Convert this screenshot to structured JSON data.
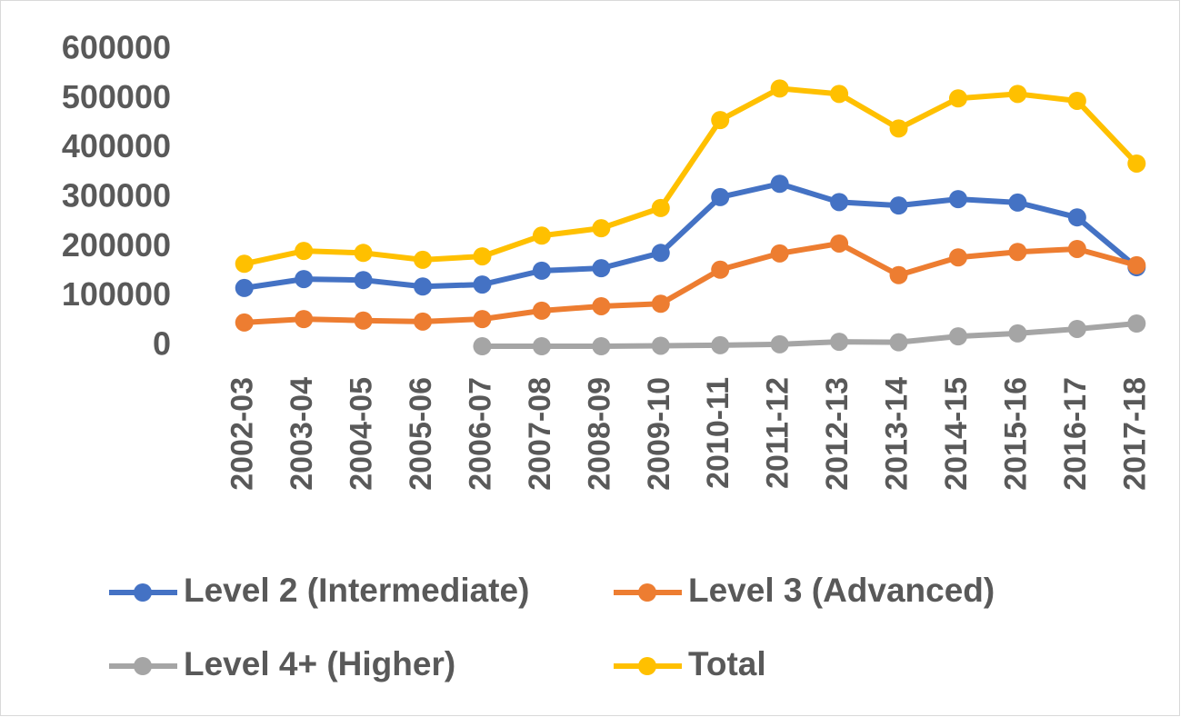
{
  "chart_data": {
    "type": "line",
    "categories": [
      "2002-03",
      "2003-04",
      "2004-05",
      "2005-06",
      "2006-07",
      "2007-08",
      "2008-09",
      "2009-10",
      "2010-11",
      "2011-12",
      "2012-13",
      "2013-14",
      "2014-15",
      "2015-16",
      "2016-17",
      "2017-18"
    ],
    "series": [
      {
        "name": "Level 2 (Intermediate)",
        "color": "#4472c4",
        "values": [
          118000,
          136000,
          134000,
          121000,
          125000,
          153000,
          158000,
          189000,
          302000,
          329000,
          292000,
          285000,
          298000,
          291000,
          261000,
          160000
        ]
      },
      {
        "name": "Level 3 (Advanced)",
        "color": "#ed7d31",
        "values": [
          48000,
          55000,
          52000,
          50000,
          55000,
          72000,
          81000,
          86000,
          155000,
          188000,
          208000,
          144000,
          180000,
          191000,
          197000,
          164000
        ]
      },
      {
        "name": "Level 4+ (Higher)",
        "color": "#a5a5a5",
        "values": [
          null,
          null,
          null,
          null,
          0,
          0,
          0,
          1000,
          2000,
          4000,
          9000,
          8000,
          20000,
          26000,
          35000,
          46000
        ]
      },
      {
        "name": "Total",
        "color": "#ffc000",
        "values": [
          167000,
          193000,
          189000,
          175000,
          182000,
          224000,
          239000,
          280000,
          458000,
          522000,
          511000,
          441000,
          502000,
          511000,
          497000,
          370000
        ]
      }
    ],
    "ylim": [
      0,
      600000
    ],
    "yticks": [
      0,
      100000,
      200000,
      300000,
      400000,
      500000,
      600000
    ],
    "grid": false,
    "legend": "bottom"
  }
}
